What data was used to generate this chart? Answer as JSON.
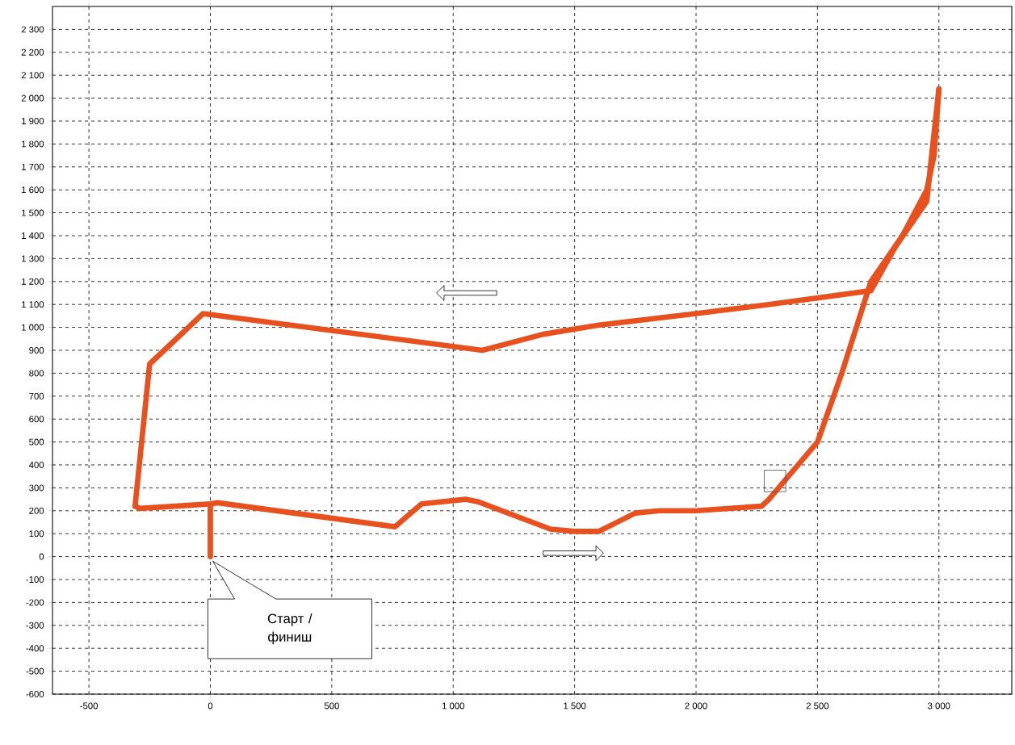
{
  "chart_data": {
    "type": "line",
    "series": [
      {
        "color": "#e8501e",
        "x": [
          0,
          0
        ],
        "values": [
          0,
          230
        ]
      },
      {
        "color": "#e8501e",
        "x": [
          -310,
          -290,
          0,
          30,
          760,
          870,
          1050,
          1100,
          1400,
          1500,
          1600,
          1750,
          1850,
          2000,
          2270,
          2300,
          2500,
          2600,
          2720,
          2850,
          2950,
          2980,
          3000
        ],
        "values": [
          220,
          210,
          230,
          235,
          130,
          230,
          250,
          240,
          120,
          110,
          110,
          190,
          200,
          200,
          220,
          250,
          500,
          800,
          1200,
          1400,
          1600,
          1750,
          2040
        ]
      },
      {
        "color": "#e8501e",
        "x": [
          3000,
          2970,
          2950,
          2820,
          2720,
          2300,
          2000,
          1600,
          1370,
          1120,
          -30,
          -250,
          -310
        ],
        "values": [
          2040,
          1750,
          1550,
          1350,
          1160,
          1100,
          1060,
          1010,
          970,
          900,
          1060,
          840,
          220
        ]
      },
      {
        "type": "scatter",
        "marker": "square",
        "color": "#4c4c4c",
        "x": [
          2325
        ],
        "values": [
          330
        ]
      }
    ],
    "xlim": [
      -650,
      3300
    ],
    "ylim": [
      -600,
      2400
    ],
    "xticks": [
      -500,
      0,
      500,
      {
        "value": 1000,
        "label": "1 000"
      },
      {
        "value": 1500,
        "label": "1 500"
      },
      {
        "value": 2000,
        "label": "2 000"
      },
      {
        "value": 2500,
        "label": "2 500"
      },
      {
        "value": 3000,
        "label": "3 000"
      }
    ],
    "yticks": [
      -600,
      -500,
      -400,
      -300,
      -200,
      -100,
      0,
      100,
      200,
      300,
      400,
      500,
      600,
      700,
      800,
      900,
      {
        "value": 1000,
        "label": "1 000"
      },
      {
        "value": 1100,
        "label": "1 100"
      },
      {
        "value": 1200,
        "label": "1 200"
      },
      {
        "value": 1300,
        "label": "1 300"
      },
      {
        "value": 1400,
        "label": "1 400"
      },
      {
        "value": 1500,
        "label": "1 500"
      },
      {
        "value": 1600,
        "label": "1 600"
      },
      {
        "value": 1700,
        "label": "1 700"
      },
      {
        "value": 1800,
        "label": "1 800"
      },
      {
        "value": 1900,
        "label": "1 900"
      },
      {
        "value": 2000,
        "label": "2 000"
      },
      {
        "value": 2100,
        "label": "2 100"
      },
      {
        "value": 2200,
        "label": "2 200"
      },
      {
        "value": 2300,
        "label": "2 300"
      }
    ],
    "grid": true,
    "line_style": "solid",
    "marker": "none",
    "annotations": [
      "Старт / финиш"
    ]
  }
}
